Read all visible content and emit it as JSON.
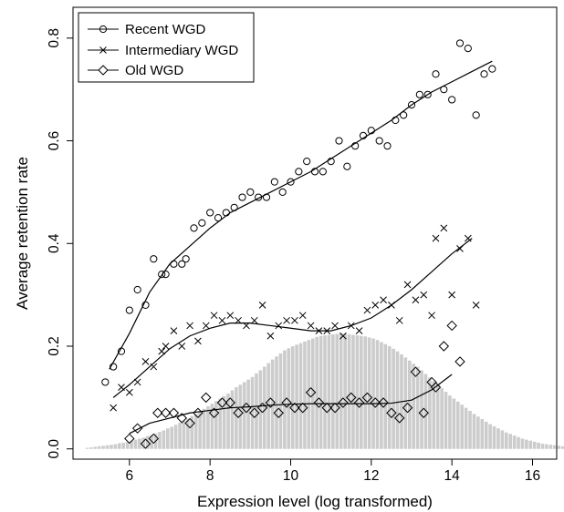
{
  "chart_data": {
    "type": "scatter",
    "title": "",
    "xlabel": "Expression level (log transformed)",
    "ylabel": "Average retention rate",
    "xlim": [
      4.6,
      16.6
    ],
    "ylim": [
      -0.02,
      0.86
    ],
    "x_ticks": [
      6,
      8,
      10,
      12,
      14,
      16
    ],
    "y_ticks": [
      0.0,
      0.2,
      0.4,
      0.6,
      0.8
    ],
    "x_tick_labels": [
      "6",
      "8",
      "10",
      "12",
      "14",
      "16"
    ],
    "y_tick_labels": [
      "0.0",
      "0.2",
      "0.4",
      "0.6",
      "0.8"
    ],
    "grid": false,
    "legend": "top-left",
    "colors": {
      "points": "#000000",
      "lines": "#000000",
      "histogram": "#cccccc"
    },
    "series": [
      {
        "name": "Recent WGD",
        "marker": "circle",
        "points": [
          [
            5.4,
            0.13
          ],
          [
            5.6,
            0.16
          ],
          [
            5.8,
            0.19
          ],
          [
            6.0,
            0.27
          ],
          [
            6.2,
            0.31
          ],
          [
            6.4,
            0.28
          ],
          [
            6.6,
            0.37
          ],
          [
            6.8,
            0.34
          ],
          [
            6.9,
            0.34
          ],
          [
            7.1,
            0.36
          ],
          [
            7.3,
            0.36
          ],
          [
            7.4,
            0.37
          ],
          [
            7.6,
            0.43
          ],
          [
            7.8,
            0.44
          ],
          [
            8.0,
            0.46
          ],
          [
            8.2,
            0.45
          ],
          [
            8.4,
            0.46
          ],
          [
            8.6,
            0.47
          ],
          [
            8.8,
            0.49
          ],
          [
            9.0,
            0.5
          ],
          [
            9.2,
            0.49
          ],
          [
            9.4,
            0.49
          ],
          [
            9.6,
            0.52
          ],
          [
            9.8,
            0.5
          ],
          [
            10.0,
            0.52
          ],
          [
            10.2,
            0.54
          ],
          [
            10.4,
            0.56
          ],
          [
            10.6,
            0.54
          ],
          [
            10.8,
            0.54
          ],
          [
            11.0,
            0.56
          ],
          [
            11.2,
            0.6
          ],
          [
            11.4,
            0.55
          ],
          [
            11.6,
            0.59
          ],
          [
            11.8,
            0.61
          ],
          [
            12.0,
            0.62
          ],
          [
            12.2,
            0.6
          ],
          [
            12.4,
            0.59
          ],
          [
            12.6,
            0.64
          ],
          [
            12.8,
            0.65
          ],
          [
            13.0,
            0.67
          ],
          [
            13.2,
            0.69
          ],
          [
            13.4,
            0.69
          ],
          [
            13.6,
            0.73
          ],
          [
            13.8,
            0.7
          ],
          [
            14.0,
            0.68
          ],
          [
            14.2,
            0.79
          ],
          [
            14.4,
            0.78
          ],
          [
            14.6,
            0.65
          ],
          [
            14.8,
            0.73
          ],
          [
            15.0,
            0.74
          ]
        ],
        "trend": [
          [
            5.5,
            0.155
          ],
          [
            6.0,
            0.225
          ],
          [
            6.5,
            0.305
          ],
          [
            7.0,
            0.36
          ],
          [
            7.5,
            0.395
          ],
          [
            8.0,
            0.43
          ],
          [
            8.5,
            0.46
          ],
          [
            9.0,
            0.48
          ],
          [
            9.5,
            0.5
          ],
          [
            10.0,
            0.52
          ],
          [
            10.5,
            0.54
          ],
          [
            11.0,
            0.565
          ],
          [
            11.5,
            0.59
          ],
          [
            12.0,
            0.615
          ],
          [
            12.5,
            0.64
          ],
          [
            13.0,
            0.67
          ],
          [
            13.5,
            0.695
          ],
          [
            14.0,
            0.715
          ],
          [
            14.5,
            0.735
          ],
          [
            15.0,
            0.755
          ]
        ]
      },
      {
        "name": "Intermediary WGD",
        "marker": "cross",
        "points": [
          [
            5.6,
            0.08
          ],
          [
            5.8,
            0.12
          ],
          [
            6.0,
            0.11
          ],
          [
            6.2,
            0.13
          ],
          [
            6.4,
            0.17
          ],
          [
            6.6,
            0.16
          ],
          [
            6.8,
            0.19
          ],
          [
            6.9,
            0.2
          ],
          [
            7.1,
            0.23
          ],
          [
            7.3,
            0.2
          ],
          [
            7.5,
            0.24
          ],
          [
            7.7,
            0.21
          ],
          [
            7.9,
            0.24
          ],
          [
            8.1,
            0.26
          ],
          [
            8.3,
            0.25
          ],
          [
            8.5,
            0.26
          ],
          [
            8.7,
            0.25
          ],
          [
            8.9,
            0.24
          ],
          [
            9.1,
            0.25
          ],
          [
            9.3,
            0.28
          ],
          [
            9.5,
            0.22
          ],
          [
            9.7,
            0.24
          ],
          [
            9.9,
            0.25
          ],
          [
            10.1,
            0.25
          ],
          [
            10.3,
            0.26
          ],
          [
            10.5,
            0.24
          ],
          [
            10.7,
            0.23
          ],
          [
            10.9,
            0.23
          ],
          [
            11.1,
            0.24
          ],
          [
            11.3,
            0.22
          ],
          [
            11.5,
            0.24
          ],
          [
            11.7,
            0.23
          ],
          [
            11.9,
            0.27
          ],
          [
            12.1,
            0.28
          ],
          [
            12.3,
            0.29
          ],
          [
            12.5,
            0.28
          ],
          [
            12.7,
            0.25
          ],
          [
            12.9,
            0.32
          ],
          [
            13.1,
            0.29
          ],
          [
            13.3,
            0.3
          ],
          [
            13.5,
            0.26
          ],
          [
            13.6,
            0.41
          ],
          [
            13.8,
            0.43
          ],
          [
            14.0,
            0.3
          ],
          [
            14.2,
            0.39
          ],
          [
            14.4,
            0.41
          ],
          [
            14.6,
            0.28
          ]
        ],
        "trend": [
          [
            5.6,
            0.1
          ],
          [
            6.0,
            0.125
          ],
          [
            6.5,
            0.16
          ],
          [
            7.0,
            0.195
          ],
          [
            7.5,
            0.22
          ],
          [
            8.0,
            0.235
          ],
          [
            8.5,
            0.245
          ],
          [
            9.0,
            0.245
          ],
          [
            9.5,
            0.24
          ],
          [
            10.0,
            0.235
          ],
          [
            10.5,
            0.23
          ],
          [
            11.0,
            0.23
          ],
          [
            11.5,
            0.24
          ],
          [
            12.0,
            0.255
          ],
          [
            12.5,
            0.28
          ],
          [
            13.0,
            0.31
          ],
          [
            13.5,
            0.345
          ],
          [
            14.0,
            0.38
          ],
          [
            14.5,
            0.41
          ]
        ]
      },
      {
        "name": "Old WGD",
        "marker": "diamond",
        "points": [
          [
            6.0,
            0.02
          ],
          [
            6.2,
            0.04
          ],
          [
            6.4,
            0.01
          ],
          [
            6.6,
            0.02
          ],
          [
            6.7,
            0.07
          ],
          [
            6.9,
            0.07
          ],
          [
            7.1,
            0.07
          ],
          [
            7.3,
            0.06
          ],
          [
            7.5,
            0.05
          ],
          [
            7.7,
            0.07
          ],
          [
            7.9,
            0.1
          ],
          [
            8.1,
            0.07
          ],
          [
            8.3,
            0.09
          ],
          [
            8.5,
            0.09
          ],
          [
            8.7,
            0.07
          ],
          [
            8.9,
            0.08
          ],
          [
            9.1,
            0.07
          ],
          [
            9.3,
            0.08
          ],
          [
            9.5,
            0.09
          ],
          [
            9.7,
            0.07
          ],
          [
            9.9,
            0.09
          ],
          [
            10.1,
            0.08
          ],
          [
            10.3,
            0.08
          ],
          [
            10.5,
            0.11
          ],
          [
            10.7,
            0.09
          ],
          [
            10.9,
            0.08
          ],
          [
            11.1,
            0.08
          ],
          [
            11.3,
            0.09
          ],
          [
            11.5,
            0.1
          ],
          [
            11.7,
            0.09
          ],
          [
            11.9,
            0.1
          ],
          [
            12.1,
            0.09
          ],
          [
            12.3,
            0.09
          ],
          [
            12.5,
            0.07
          ],
          [
            12.7,
            0.06
          ],
          [
            12.9,
            0.08
          ],
          [
            13.1,
            0.15
          ],
          [
            13.3,
            0.07
          ],
          [
            13.5,
            0.13
          ],
          [
            13.6,
            0.12
          ],
          [
            13.8,
            0.2
          ],
          [
            14.0,
            0.24
          ],
          [
            14.2,
            0.17
          ]
        ],
        "trend": [
          [
            6.0,
            0.03
          ],
          [
            6.5,
            0.05
          ],
          [
            7.0,
            0.06
          ],
          [
            7.5,
            0.07
          ],
          [
            8.0,
            0.075
          ],
          [
            8.5,
            0.08
          ],
          [
            9.0,
            0.082
          ],
          [
            9.5,
            0.085
          ],
          [
            10.0,
            0.087
          ],
          [
            10.5,
            0.088
          ],
          [
            11.0,
            0.088
          ],
          [
            11.5,
            0.088
          ],
          [
            12.0,
            0.088
          ],
          [
            12.5,
            0.089
          ],
          [
            13.0,
            0.095
          ],
          [
            13.5,
            0.115
          ],
          [
            14.0,
            0.145
          ]
        ]
      }
    ],
    "histogram": {
      "x_start": 4.9,
      "bin_width": 0.1,
      "heights": [
        0.002,
        0.003,
        0.004,
        0.005,
        0.006,
        0.007,
        0.008,
        0.009,
        0.011,
        0.012,
        0.014,
        0.016,
        0.018,
        0.02,
        0.022,
        0.025,
        0.027,
        0.03,
        0.033,
        0.036,
        0.04,
        0.043,
        0.047,
        0.051,
        0.055,
        0.059,
        0.064,
        0.068,
        0.073,
        0.078,
        0.083,
        0.088,
        0.093,
        0.098,
        0.103,
        0.108,
        0.114,
        0.12,
        0.125,
        0.13,
        0.135,
        0.14,
        0.147,
        0.153,
        0.16,
        0.167,
        0.174,
        0.18,
        0.186,
        0.192,
        0.196,
        0.2,
        0.203,
        0.206,
        0.209,
        0.212,
        0.215,
        0.218,
        0.22,
        0.221,
        0.222,
        0.223,
        0.224,
        0.225,
        0.224,
        0.223,
        0.222,
        0.221,
        0.22,
        0.219,
        0.217,
        0.215,
        0.212,
        0.208,
        0.204,
        0.2,
        0.195,
        0.19,
        0.184,
        0.178,
        0.172,
        0.166,
        0.16,
        0.153,
        0.146,
        0.139,
        0.132,
        0.125,
        0.118,
        0.111,
        0.104,
        0.098,
        0.092,
        0.086,
        0.08,
        0.074,
        0.068,
        0.063,
        0.058,
        0.053,
        0.048,
        0.044,
        0.04,
        0.036,
        0.032,
        0.029,
        0.026,
        0.023,
        0.02,
        0.018,
        0.016,
        0.014,
        0.012,
        0.01,
        0.009,
        0.008,
        0.007,
        0.006,
        0.005,
        0.004,
        0.003,
        0.003,
        0.002,
        0.002,
        0.001,
        0.001,
        0.001
      ]
    }
  }
}
